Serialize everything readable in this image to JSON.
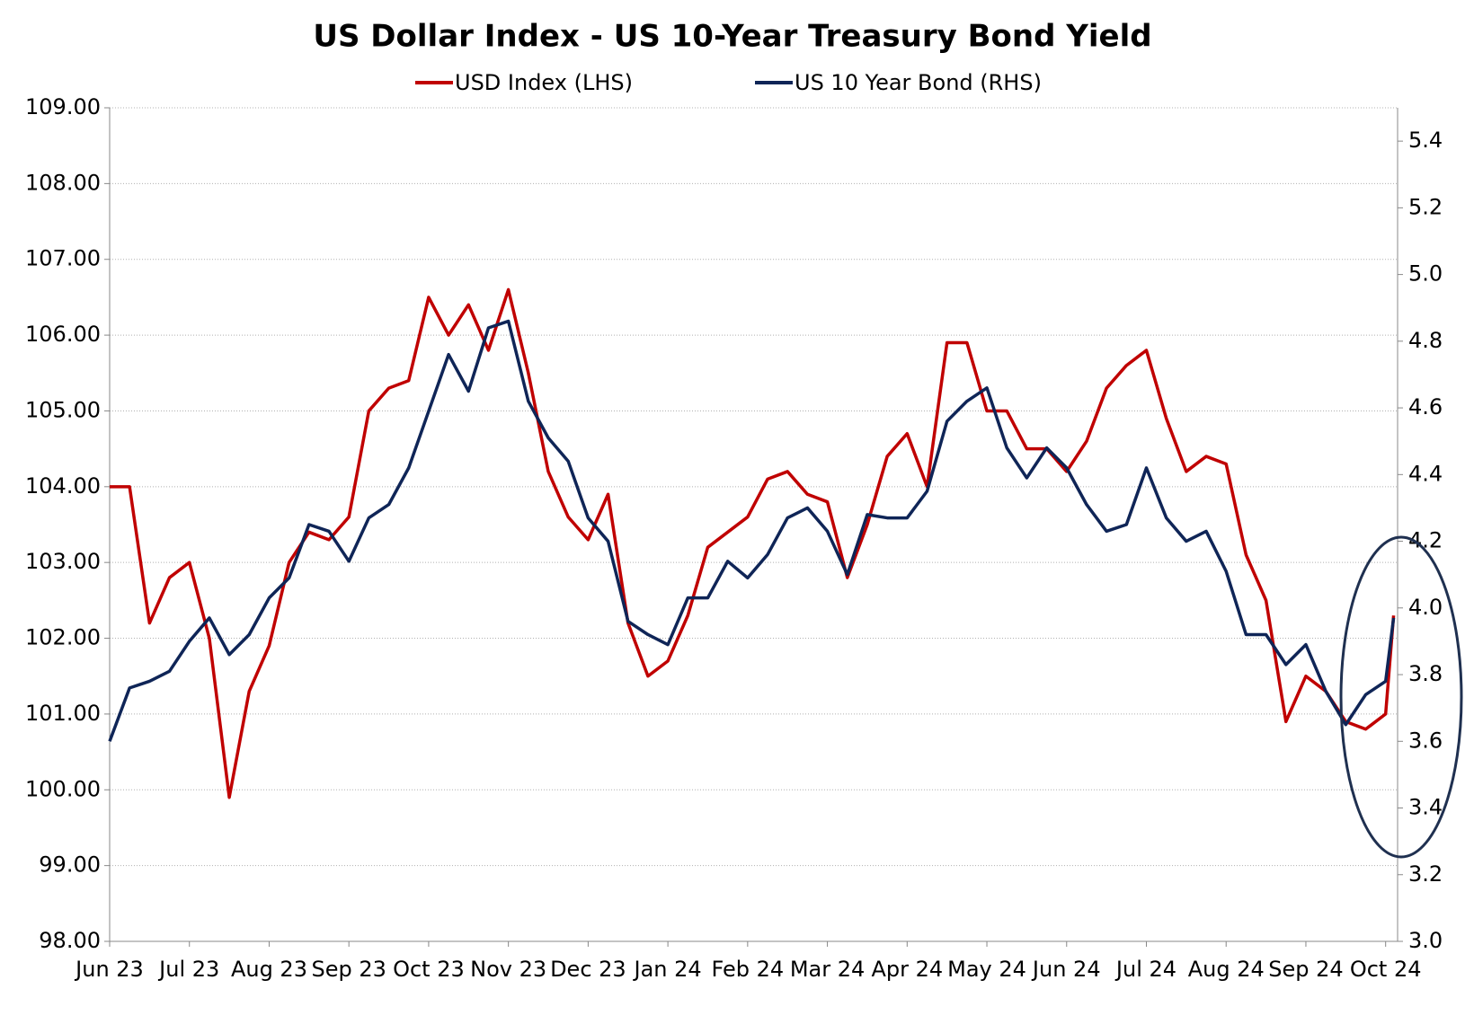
{
  "chart_data": {
    "type": "line",
    "title": "US Dollar Index - US 10-Year Treasury Bond Yield",
    "x": [
      0,
      0.25,
      0.5,
      0.75,
      1,
      1.25,
      1.5,
      1.75,
      2,
      2.25,
      2.5,
      2.75,
      3,
      3.25,
      3.5,
      3.75,
      4,
      4.25,
      4.5,
      4.75,
      5,
      5.25,
      5.5,
      5.75,
      6,
      6.25,
      6.5,
      6.75,
      7,
      7.25,
      7.5,
      7.75,
      8,
      8.25,
      8.5,
      8.75,
      9,
      9.25,
      9.5,
      9.75,
      10,
      10.25,
      10.5,
      10.75,
      11,
      11.25,
      11.5,
      11.75,
      12,
      12.25,
      12.5,
      12.75,
      13,
      13.25,
      13.5,
      13.75,
      14,
      14.25,
      14.5,
      14.75,
      15,
      15.25,
      15.5,
      15.75,
      16,
      16.1
    ],
    "series": [
      {
        "name": "USD Index (LHS)",
        "color": "#c00000",
        "axis": "y",
        "values": [
          104.0,
          104.0,
          102.2,
          102.8,
          103.0,
          102.0,
          99.9,
          101.3,
          101.9,
          103.0,
          103.4,
          103.3,
          103.6,
          105.0,
          105.3,
          105.4,
          106.5,
          106.0,
          106.4,
          105.8,
          106.6,
          105.5,
          104.2,
          103.6,
          103.3,
          103.9,
          102.2,
          101.5,
          101.7,
          102.3,
          103.2,
          103.4,
          103.6,
          104.1,
          104.2,
          103.9,
          103.8,
          102.8,
          103.5,
          104.4,
          104.7,
          104.0,
          105.9,
          105.9,
          105.0,
          105.0,
          104.5,
          104.5,
          104.2,
          104.6,
          105.3,
          105.6,
          105.8,
          104.9,
          104.2,
          104.4,
          104.3,
          103.1,
          102.5,
          100.9,
          101.5,
          101.3,
          100.9,
          100.8,
          101.0,
          102.3
        ]
      },
      {
        "name": "US 10 Year Bond (RHS)",
        "color": "#0f2557",
        "axis": "y2",
        "values": [
          3.6,
          3.76,
          3.78,
          3.81,
          3.9,
          3.97,
          3.86,
          3.92,
          4.03,
          4.09,
          4.25,
          4.23,
          4.14,
          4.27,
          4.31,
          4.42,
          4.59,
          4.76,
          4.65,
          4.84,
          4.86,
          4.62,
          4.51,
          4.44,
          4.27,
          4.2,
          3.96,
          3.92,
          3.89,
          4.03,
          4.03,
          4.14,
          4.09,
          4.16,
          4.27,
          4.3,
          4.23,
          4.1,
          4.28,
          4.27,
          4.27,
          4.35,
          4.56,
          4.62,
          4.66,
          4.48,
          4.39,
          4.48,
          4.42,
          4.31,
          4.23,
          4.25,
          4.42,
          4.27,
          4.2,
          4.23,
          4.11,
          3.92,
          3.92,
          3.83,
          3.89,
          3.75,
          3.65,
          3.74,
          3.78,
          3.97
        ]
      }
    ],
    "xlim": [
      0,
      16.15
    ],
    "xticks": [
      {
        "value": 0,
        "label": "Jun 23"
      },
      {
        "value": 1,
        "label": "Jul 23"
      },
      {
        "value": 2,
        "label": "Aug 23"
      },
      {
        "value": 3,
        "label": "Sep 23"
      },
      {
        "value": 4,
        "label": "Oct 23"
      },
      {
        "value": 5,
        "label": "Nov 23"
      },
      {
        "value": 6,
        "label": "Dec 23"
      },
      {
        "value": 7,
        "label": "Jan 24"
      },
      {
        "value": 8,
        "label": "Feb 24"
      },
      {
        "value": 9,
        "label": "Mar 24"
      },
      {
        "value": 10,
        "label": "Apr 24"
      },
      {
        "value": 11,
        "label": "May 24"
      },
      {
        "value": 12,
        "label": "Jun 24"
      },
      {
        "value": 13,
        "label": "Jul 24"
      },
      {
        "value": 14,
        "label": "Aug 24"
      },
      {
        "value": 15,
        "label": "Sep 24"
      },
      {
        "value": 16,
        "label": "Oct 24"
      }
    ],
    "ylim": [
      98,
      109
    ],
    "yticks": [
      {
        "value": 98,
        "label": "98.00"
      },
      {
        "value": 99,
        "label": "99.00"
      },
      {
        "value": 100,
        "label": "100.00"
      },
      {
        "value": 101,
        "label": "101.00"
      },
      {
        "value": 102,
        "label": "102.00"
      },
      {
        "value": 103,
        "label": "103.00"
      },
      {
        "value": 104,
        "label": "104.00"
      },
      {
        "value": 105,
        "label": "105.00"
      },
      {
        "value": 106,
        "label": "106.00"
      },
      {
        "value": 107,
        "label": "107.00"
      },
      {
        "value": 108,
        "label": "108.00"
      },
      {
        "value": 109,
        "label": "109.00"
      }
    ],
    "y2lim": [
      3.0,
      5.5
    ],
    "y2ticks": [
      {
        "value": 3,
        "label": "3.0"
      },
      3.2,
      3.4,
      3.6,
      3.8,
      {
        "value": 4,
        "label": "4.0"
      },
      4.2,
      4.4,
      4.6,
      4.8,
      {
        "value": 5,
        "label": "5.0"
      },
      5.2,
      5.4
    ],
    "grid": true
  }
}
